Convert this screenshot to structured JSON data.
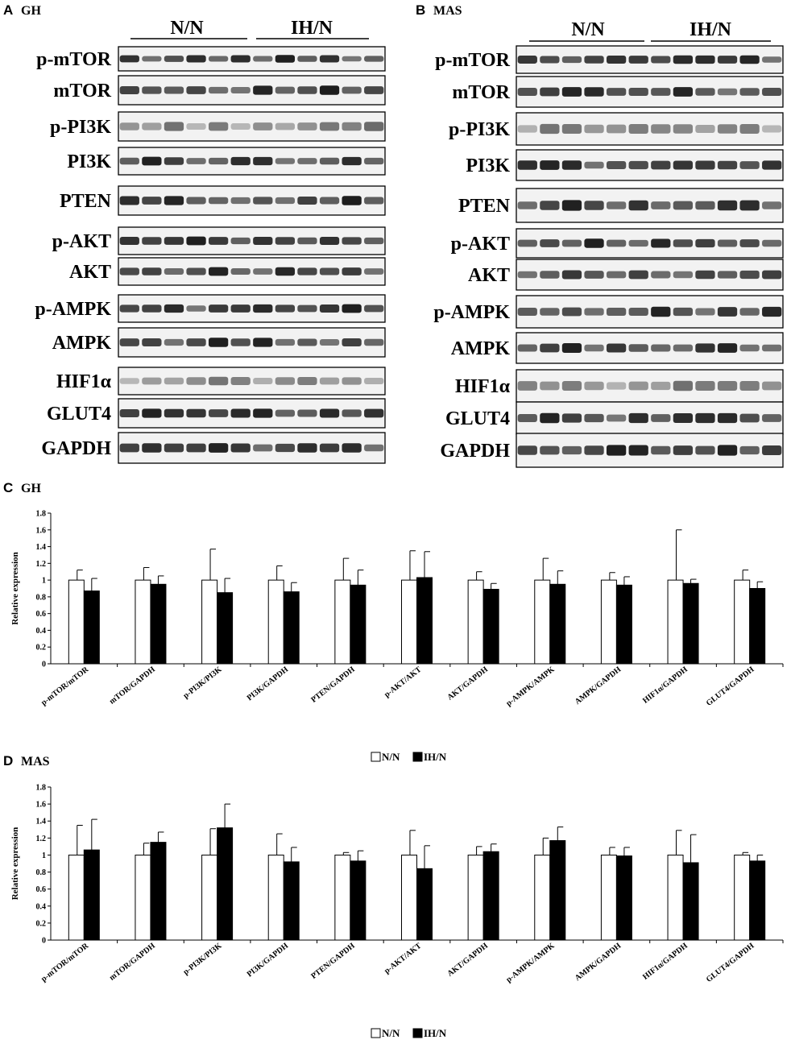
{
  "blots": [
    {
      "letter": "A",
      "title": "GH",
      "groups": [
        "N/N",
        "IH/N"
      ],
      "proteins": [
        "p-mTOR",
        "mTOR",
        "p-PI3K",
        "PI3K",
        "PTEN",
        "p-AKT",
        "AKT",
        "p-AMPK",
        "AMPK",
        "HIF1α",
        "GLUT4",
        "GAPDH"
      ]
    },
    {
      "letter": "B",
      "title": "MAS",
      "groups": [
        "N/N",
        "IH/N"
      ],
      "proteins": [
        "p-mTOR",
        "mTOR",
        "p-PI3K",
        "PI3K",
        "PTEN",
        "p-AKT",
        "AKT",
        "p-AMPK",
        "AMPK",
        "HIF1α",
        "GLUT4",
        "GAPDH"
      ]
    }
  ],
  "chart_data": [
    {
      "letter": "C",
      "title": "GH",
      "type": "bar",
      "ylabel": "Relative expression",
      "ylim": [
        0,
        1.8
      ],
      "yticks": [
        "0",
        "0.2",
        "0.4",
        "0.6",
        "0.8",
        "1",
        "1.2",
        "1.4",
        "1.6",
        "1.8"
      ],
      "categories": [
        "p-mTOR/mTOR",
        "mTOR/GAPDH",
        "p-PI3K/PI3K",
        "PI3K/GAPDH",
        "PTEN/GAPDH",
        "p-AKT/AKT",
        "AKT/GAPDH",
        "p-AMPK/AMPK",
        "AMPK/GAPDH",
        "HIF1α/GAPDH",
        "GLUT4/GAPDH"
      ],
      "legend_position": "bottom-center",
      "series": [
        {
          "name": "N/N",
          "color": "#ffffff",
          "values": [
            1,
            1,
            1,
            1,
            1,
            1,
            1,
            1,
            1,
            1,
            1
          ],
          "errors": [
            0.12,
            0.15,
            0.37,
            0.17,
            0.26,
            0.35,
            0.1,
            0.26,
            0.09,
            0.6,
            0.12
          ]
        },
        {
          "name": "IH/N",
          "color": "#000000",
          "values": [
            0.87,
            0.95,
            0.85,
            0.86,
            0.94,
            1.03,
            0.89,
            0.95,
            0.94,
            0.96,
            0.9
          ],
          "errors": [
            0.15,
            0.1,
            0.17,
            0.11,
            0.18,
            0.31,
            0.07,
            0.16,
            0.1,
            0.05,
            0.08
          ]
        }
      ]
    },
    {
      "letter": "D",
      "title": "MAS",
      "type": "bar",
      "ylabel": "Relative expression",
      "ylim": [
        0,
        1.8
      ],
      "yticks": [
        "0",
        "0.2",
        "0.4",
        "0.6",
        "0.8",
        "1",
        "1.2",
        "1.4",
        "1.6",
        "1.8"
      ],
      "categories": [
        "p-mTOR/mTOR",
        "mTOR/GAPDH",
        "p-PI3K/PI3K",
        "PI3K/GAPDH",
        "PTEN/GAPDH",
        "p-AKT/AKT",
        "AKT/GAPDH",
        "p-AMPK/AMPK",
        "AMPK/GAPDH",
        "HIF1α/GAPDH",
        "GLUT4/GAPDH"
      ],
      "legend_position": "bottom-center",
      "series": [
        {
          "name": "N/N",
          "color": "#ffffff",
          "values": [
            1,
            1,
            1,
            1,
            1,
            1,
            1,
            1,
            1,
            1,
            1
          ],
          "errors": [
            0.35,
            0.14,
            0.31,
            0.25,
            0.03,
            0.29,
            0.1,
            0.2,
            0.09,
            0.29,
            0.03
          ]
        },
        {
          "name": "IH/N",
          "color": "#000000",
          "values": [
            1.06,
            1.15,
            1.32,
            0.92,
            0.93,
            0.84,
            1.04,
            1.17,
            0.99,
            0.91,
            0.93
          ],
          "errors": [
            0.36,
            0.12,
            0.28,
            0.17,
            0.12,
            0.27,
            0.09,
            0.16,
            0.1,
            0.33,
            0.07
          ]
        }
      ]
    }
  ]
}
